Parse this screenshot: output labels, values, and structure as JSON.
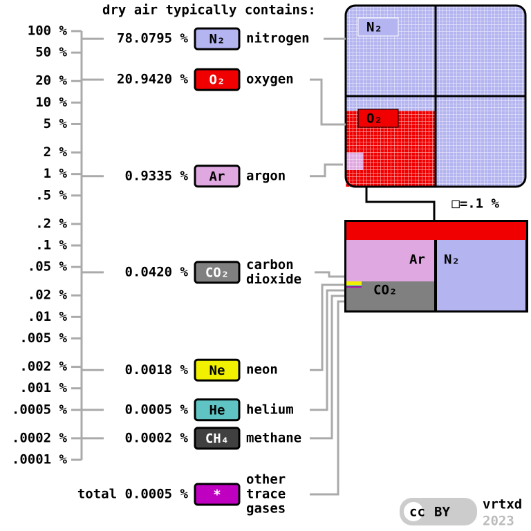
{
  "chart_data": {
    "type": "log-axis-dots",
    "title": "dry air typically contains:",
    "categories": [
      "nitrogen",
      "oxygen",
      "argon",
      "carbon dioxide",
      "neon",
      "helium",
      "methane",
      "other trace gases"
    ],
    "symbols": [
      "N₂",
      "O₂",
      "Ar",
      "CO₂",
      "Ne",
      "He",
      "CH₄",
      "*"
    ],
    "values": [
      78.0795,
      20.942,
      0.9335,
      0.042,
      0.0018,
      0.0005,
      0.0002,
      0.0005
    ],
    "value_labels": [
      "78.0795 %",
      "20.9420 %",
      "0.9335 %",
      "0.0420 %",
      "0.0018 %",
      "0.0005 %",
      "0.0002 %",
      "total 0.0005 %"
    ],
    "colors": [
      "#b4b4f0",
      "#f00000",
      "#e0a8e0",
      "#808080",
      "#f0f000",
      "#60c4c4",
      "#404040",
      "#c000c0"
    ],
    "yscale": "log",
    "ylim": [
      0.0001,
      100
    ],
    "yticks": [
      {
        "value": 100,
        "label": "100 %"
      },
      {
        "value": 50,
        "label": "50 %"
      },
      {
        "value": 20,
        "label": "20 %"
      },
      {
        "value": 10,
        "label": "10 %"
      },
      {
        "value": 5,
        "label": "5 %"
      },
      {
        "value": 2,
        "label": "2 %"
      },
      {
        "value": 1,
        "label": "1 %"
      },
      {
        "value": 0.5,
        "label": ".5 %"
      },
      {
        "value": 0.2,
        "label": ".2 %"
      },
      {
        "value": 0.1,
        "label": ".1 %"
      },
      {
        "value": 0.05,
        "label": ".05 %"
      },
      {
        "value": 0.02,
        "label": ".02 %"
      },
      {
        "value": 0.01,
        "label": ".01 %"
      },
      {
        "value": 0.005,
        "label": ".005 %"
      },
      {
        "value": 0.002,
        "label": ".002 %"
      },
      {
        "value": 0.001,
        "label": ".001 %"
      },
      {
        "value": 0.0005,
        "label": ".0005 %"
      },
      {
        "value": 0.0002,
        "label": ".0002 %"
      },
      {
        "value": 0.0001,
        "label": ".0001 %"
      }
    ],
    "note": "□=.1 %",
    "credit": "vrtxd",
    "year": "2023"
  }
}
